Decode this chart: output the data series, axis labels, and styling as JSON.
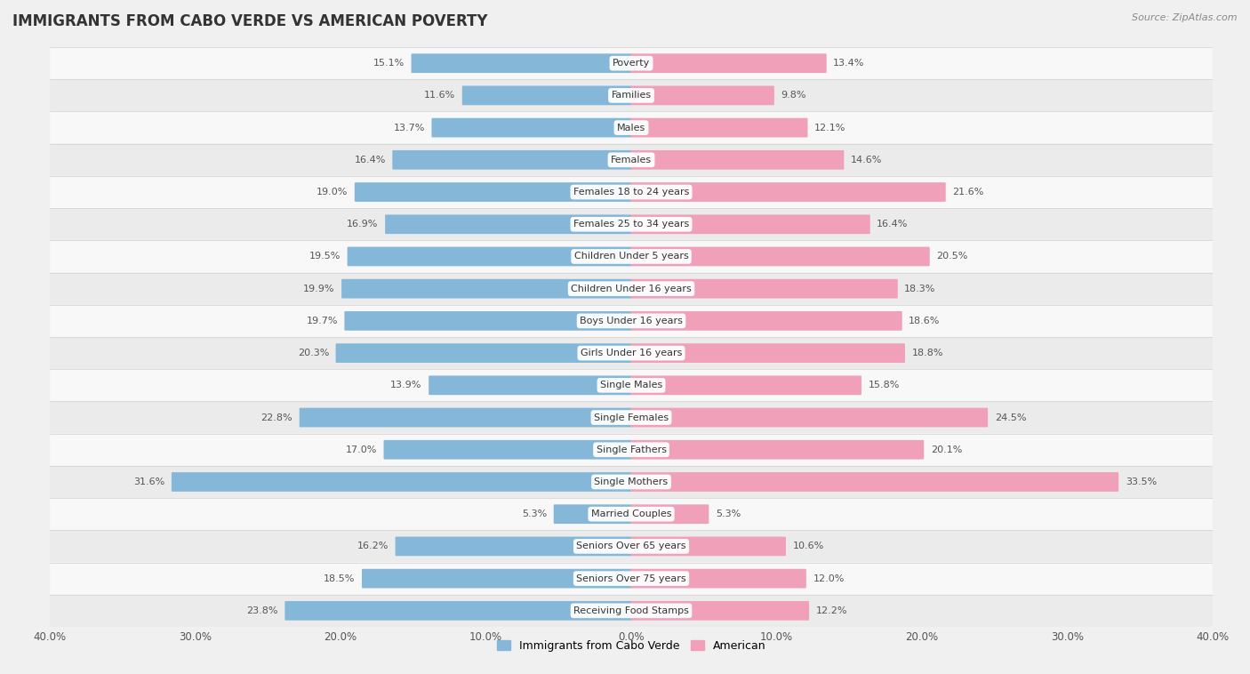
{
  "title": "IMMIGRANTS FROM CABO VERDE VS AMERICAN POVERTY",
  "source": "Source: ZipAtlas.com",
  "categories": [
    "Poverty",
    "Families",
    "Males",
    "Females",
    "Females 18 to 24 years",
    "Females 25 to 34 years",
    "Children Under 5 years",
    "Children Under 16 years",
    "Boys Under 16 years",
    "Girls Under 16 years",
    "Single Males",
    "Single Females",
    "Single Fathers",
    "Single Mothers",
    "Married Couples",
    "Seniors Over 65 years",
    "Seniors Over 75 years",
    "Receiving Food Stamps"
  ],
  "cabo_verde": [
    15.1,
    11.6,
    13.7,
    16.4,
    19.0,
    16.9,
    19.5,
    19.9,
    19.7,
    20.3,
    13.9,
    22.8,
    17.0,
    31.6,
    5.3,
    16.2,
    18.5,
    23.8
  ],
  "american": [
    13.4,
    9.8,
    12.1,
    14.6,
    21.6,
    16.4,
    20.5,
    18.3,
    18.6,
    18.8,
    15.8,
    24.5,
    20.1,
    33.5,
    5.3,
    10.6,
    12.0,
    12.2
  ],
  "cabo_verde_color": "#85b8d8",
  "american_color": "#f0a0b8",
  "cabo_verde_label": "Immigrants from Cabo Verde",
  "american_label": "American",
  "xlim": 40.0,
  "background_color": "#f0f0f0",
  "row_color_light": "#f8f8f8",
  "row_color_dark": "#ebebeb",
  "bar_height": 0.52,
  "title_fontsize": 12,
  "label_fontsize": 8.0,
  "value_fontsize": 8.0,
  "source_fontsize": 8.0
}
